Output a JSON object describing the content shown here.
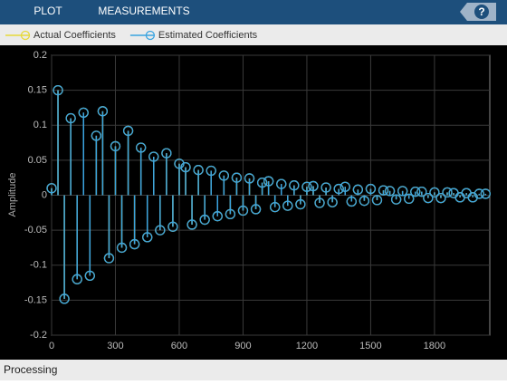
{
  "toolbar": {
    "tabs": [
      "PLOT",
      "MEASUREMENTS"
    ],
    "help": "?"
  },
  "status": "Processing",
  "chart_data": {
    "type": "stem",
    "ylabel": "Amplitude",
    "x": [
      0,
      30,
      60,
      90,
      120,
      150,
      180,
      210,
      240,
      270,
      300,
      330,
      360,
      390,
      420,
      450,
      480,
      510,
      540,
      570,
      600,
      630,
      660,
      690,
      720,
      750,
      780,
      810,
      840,
      870,
      900,
      930,
      960,
      990,
      1020,
      1050,
      1080,
      1110,
      1140,
      1170,
      1200,
      1230,
      1260,
      1290,
      1320,
      1350,
      1380,
      1410,
      1440,
      1470,
      1500,
      1530,
      1560,
      1590,
      1620,
      1650,
      1680,
      1710,
      1740,
      1770,
      1800,
      1830,
      1860,
      1890,
      1920,
      1950,
      1980,
      2010,
      2040
    ],
    "series": [
      {
        "name": "Actual Coefficients",
        "color": "#e6d93a",
        "values": [
          0.01,
          0.15,
          -0.148,
          0.11,
          -0.12,
          0.118,
          -0.115,
          0.085,
          0.12,
          -0.09,
          0.07,
          -0.075,
          0.092,
          -0.07,
          0.068,
          -0.06,
          0.055,
          -0.05,
          0.06,
          -0.045,
          0.045,
          0.04,
          -0.042,
          0.036,
          -0.035,
          0.035,
          -0.03,
          0.028,
          -0.027,
          0.025,
          -0.022,
          0.024,
          -0.02,
          0.018,
          0.02,
          -0.017,
          0.016,
          -0.015,
          0.014,
          -0.013,
          0.012,
          0.013,
          -0.011,
          0.011,
          -0.01,
          0.009,
          0.012,
          -0.009,
          0.008,
          -0.008,
          0.009,
          -0.007,
          0.007,
          0.006,
          -0.006,
          0.006,
          -0.005,
          0.005,
          0.005,
          -0.004,
          0.004,
          -0.004,
          0.004,
          0.003,
          -0.003,
          0.003,
          -0.003,
          0.002,
          0.002
        ]
      },
      {
        "name": "Estimated Coefficients",
        "color": "#3ba4e0",
        "values": [
          0.01,
          0.15,
          -0.148,
          0.11,
          -0.12,
          0.118,
          -0.115,
          0.085,
          0.12,
          -0.09,
          0.07,
          -0.075,
          0.092,
          -0.07,
          0.068,
          -0.06,
          0.055,
          -0.05,
          0.06,
          -0.045,
          0.045,
          0.04,
          -0.042,
          0.036,
          -0.035,
          0.035,
          -0.03,
          0.028,
          -0.027,
          0.025,
          -0.022,
          0.024,
          -0.02,
          0.018,
          0.02,
          -0.017,
          0.016,
          -0.015,
          0.014,
          -0.013,
          0.012,
          0.013,
          -0.011,
          0.011,
          -0.01,
          0.009,
          0.012,
          -0.009,
          0.008,
          -0.008,
          0.009,
          -0.007,
          0.007,
          0.006,
          -0.006,
          0.006,
          -0.005,
          0.005,
          0.005,
          -0.004,
          0.004,
          -0.004,
          0.004,
          0.003,
          -0.003,
          0.003,
          -0.003,
          0.002,
          0.002
        ]
      }
    ],
    "xlim": [
      0,
      2060
    ],
    "xticks": [
      0,
      300,
      600,
      900,
      1200,
      1500,
      1800
    ],
    "ylim": [
      -0.2,
      0.2
    ],
    "yticks": [
      0.2,
      0.15,
      0.1,
      0.05,
      0,
      -0.05,
      -0.1,
      -0.15,
      -0.2
    ],
    "grid": true
  }
}
